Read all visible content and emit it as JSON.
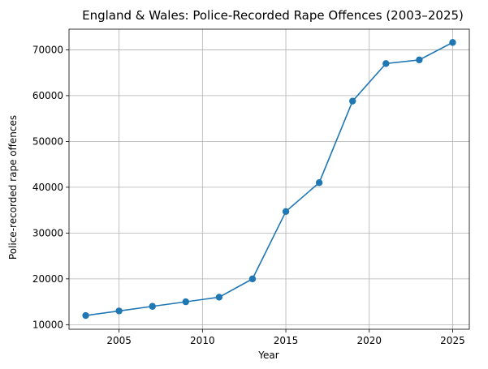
{
  "chart_data": {
    "type": "line",
    "title": "England & Wales: Police-Recorded Rape Offences (2003–2025)",
    "xlabel": "Year",
    "ylabel": "Police-recorded rape offences",
    "xlim": [
      2002,
      2026
    ],
    "ylim": [
      9000,
      74500
    ],
    "xticks": [
      2005,
      2010,
      2015,
      2020,
      2025
    ],
    "yticks": [
      10000,
      20000,
      30000,
      40000,
      50000,
      60000,
      70000
    ],
    "grid": true,
    "series": [
      {
        "color": "#1f77b4",
        "marker": "circle",
        "x": [
          2003,
          2005,
          2007,
          2009,
          2011,
          2013,
          2015,
          2017,
          2019,
          2021,
          2023,
          2025
        ],
        "y": [
          12000,
          13000,
          14000,
          15000,
          16000,
          20000,
          34700,
          41000,
          58800,
          67000,
          67800,
          71600
        ]
      }
    ]
  }
}
